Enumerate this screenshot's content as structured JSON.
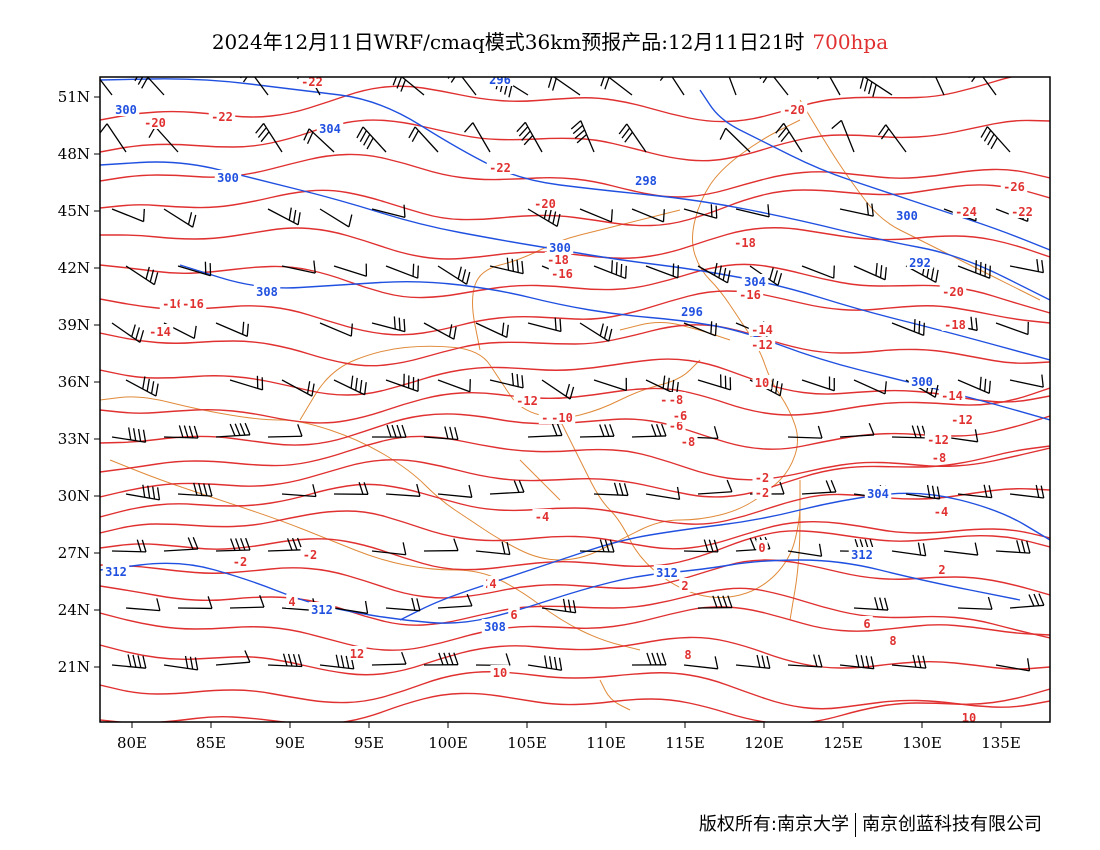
{
  "title": {
    "main": "2024年12月11日WRF/cmaq模式36km预报产品:12月11日21时",
    "level": "700hpa"
  },
  "axes": {
    "lon_ticks": [
      "80E",
      "85E",
      "90E",
      "95E",
      "100E",
      "105E",
      "110E",
      "115E",
      "120E",
      "125E",
      "130E",
      "135E"
    ],
    "lat_ticks": [
      "51N",
      "48N",
      "45N",
      "42N",
      "39N",
      "36N",
      "33N",
      "30N",
      "27N",
      "24N",
      "21N"
    ]
  },
  "colors": {
    "height_contour": "#2050e0",
    "temperature_contour": "#e03030",
    "boundary": "#e08a3a",
    "wind_barb": "#000000"
  },
  "height_labels": [
    "300",
    "304",
    "300",
    "296",
    "298",
    "300",
    "300",
    "304",
    "296",
    "292",
    "300",
    "308",
    "312",
    "312",
    "312",
    "312",
    "308",
    "304"
  ],
  "temp_labels": [
    "-22",
    "-20",
    "-22",
    "-22",
    "-20",
    "-20",
    "-26",
    "-24",
    "-22",
    "-18",
    "-18",
    "-16",
    "-20",
    "-16",
    "-14",
    "-18",
    "-16",
    "-12",
    "-14",
    "-12",
    "-10",
    "-10",
    "-12",
    "-6",
    "-8",
    "-8",
    "-6",
    "-4",
    "-4",
    "-2",
    "-2",
    "-2",
    "0",
    "2",
    "2",
    "2",
    "4",
    "4",
    "6",
    "6",
    "8",
    "8",
    "10",
    "10",
    "12",
    "10",
    "-16",
    "-14",
    "-12",
    "-10",
    "-8",
    "-6",
    "-2"
  ],
  "footer": {
    "copyright": "版权所有:南京大学",
    "company": "南京创蓝科技有限公司"
  }
}
